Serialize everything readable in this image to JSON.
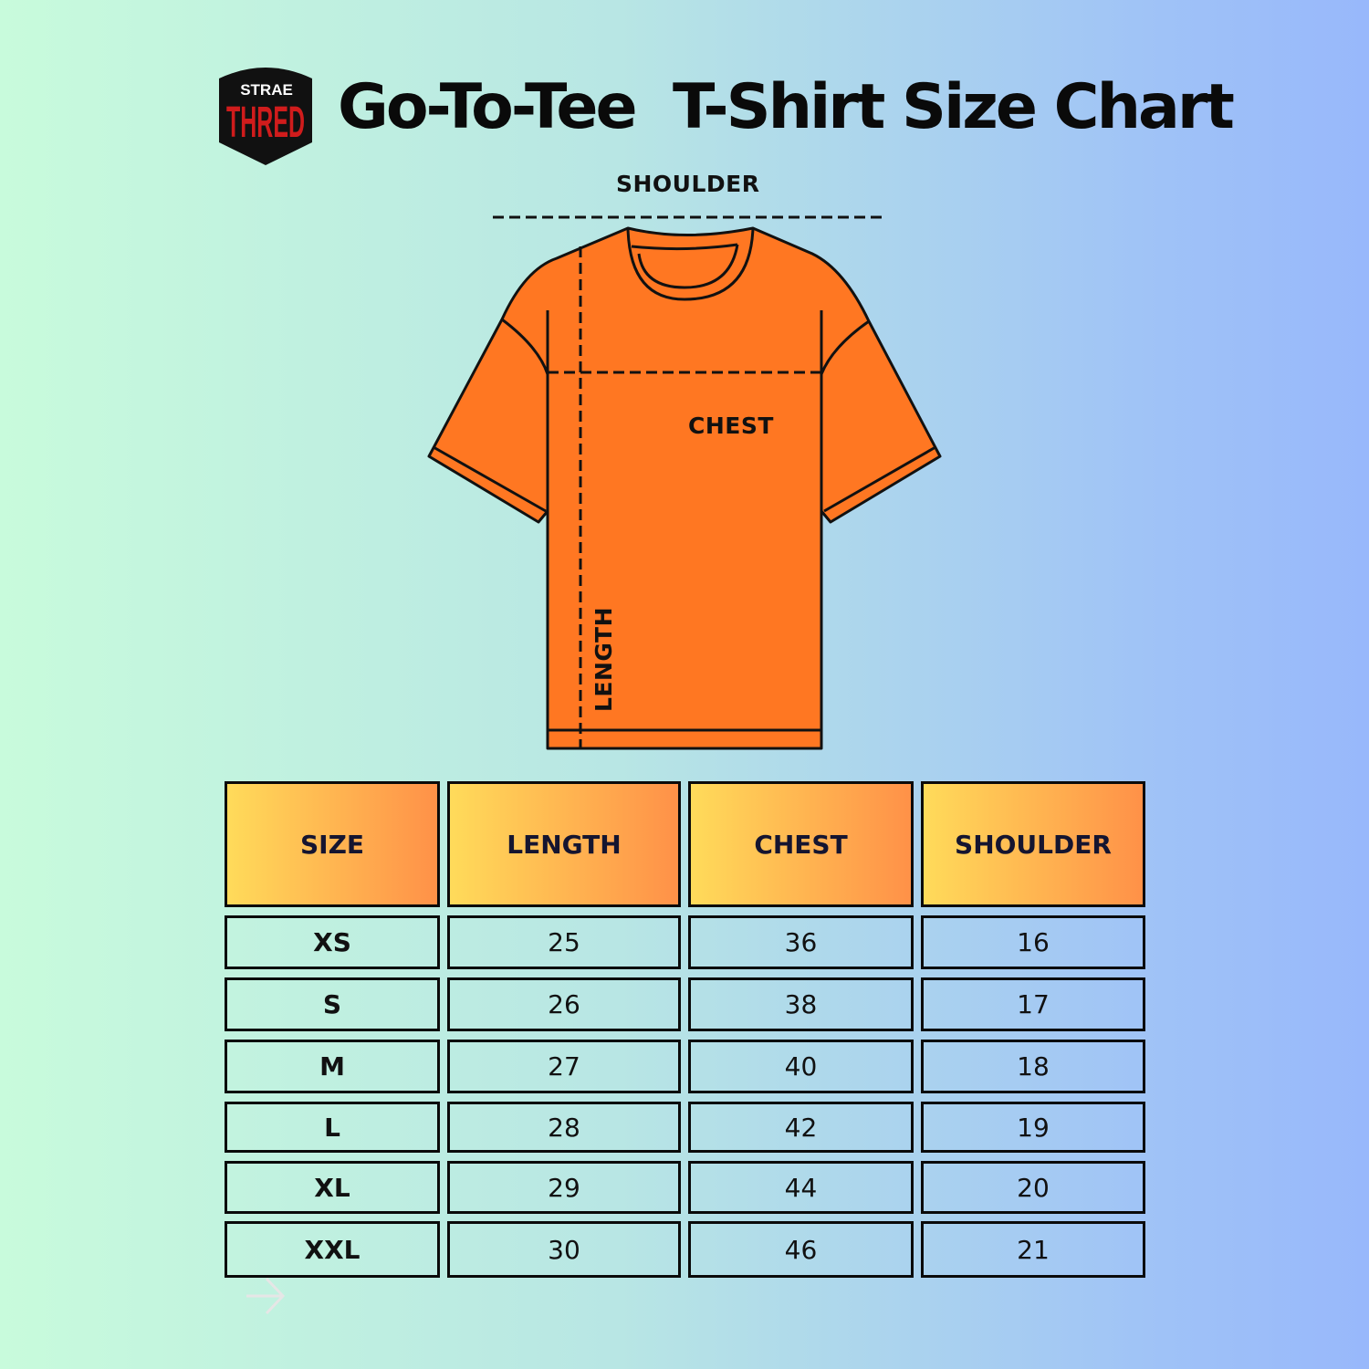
{
  "title": "Go-To-Tee  T-Shirt Size Chart",
  "logo": {
    "top_text": "STRAE",
    "main_text": "THRED",
    "bg": "#111111",
    "accent": "#d01c1c"
  },
  "diagram": {
    "shoulder_label": "SHOULDER",
    "chest_label": "CHEST",
    "length_label": "LENGTH",
    "shirt_color": "#ff7722"
  },
  "table": {
    "headers": [
      "SIZE",
      "LENGTH",
      "CHEST",
      "SHOULDER"
    ],
    "rows": [
      [
        "XS",
        "25",
        "36",
        "16"
      ],
      [
        "S",
        "26",
        "38",
        "17"
      ],
      [
        "M",
        "27",
        "40",
        "18"
      ],
      [
        "L",
        "28",
        "42",
        "19"
      ],
      [
        "XL",
        "29",
        "44",
        "20"
      ],
      [
        "XXL",
        "30",
        "46",
        "21"
      ]
    ]
  },
  "icons": {
    "next": "arrow-right-icon"
  }
}
